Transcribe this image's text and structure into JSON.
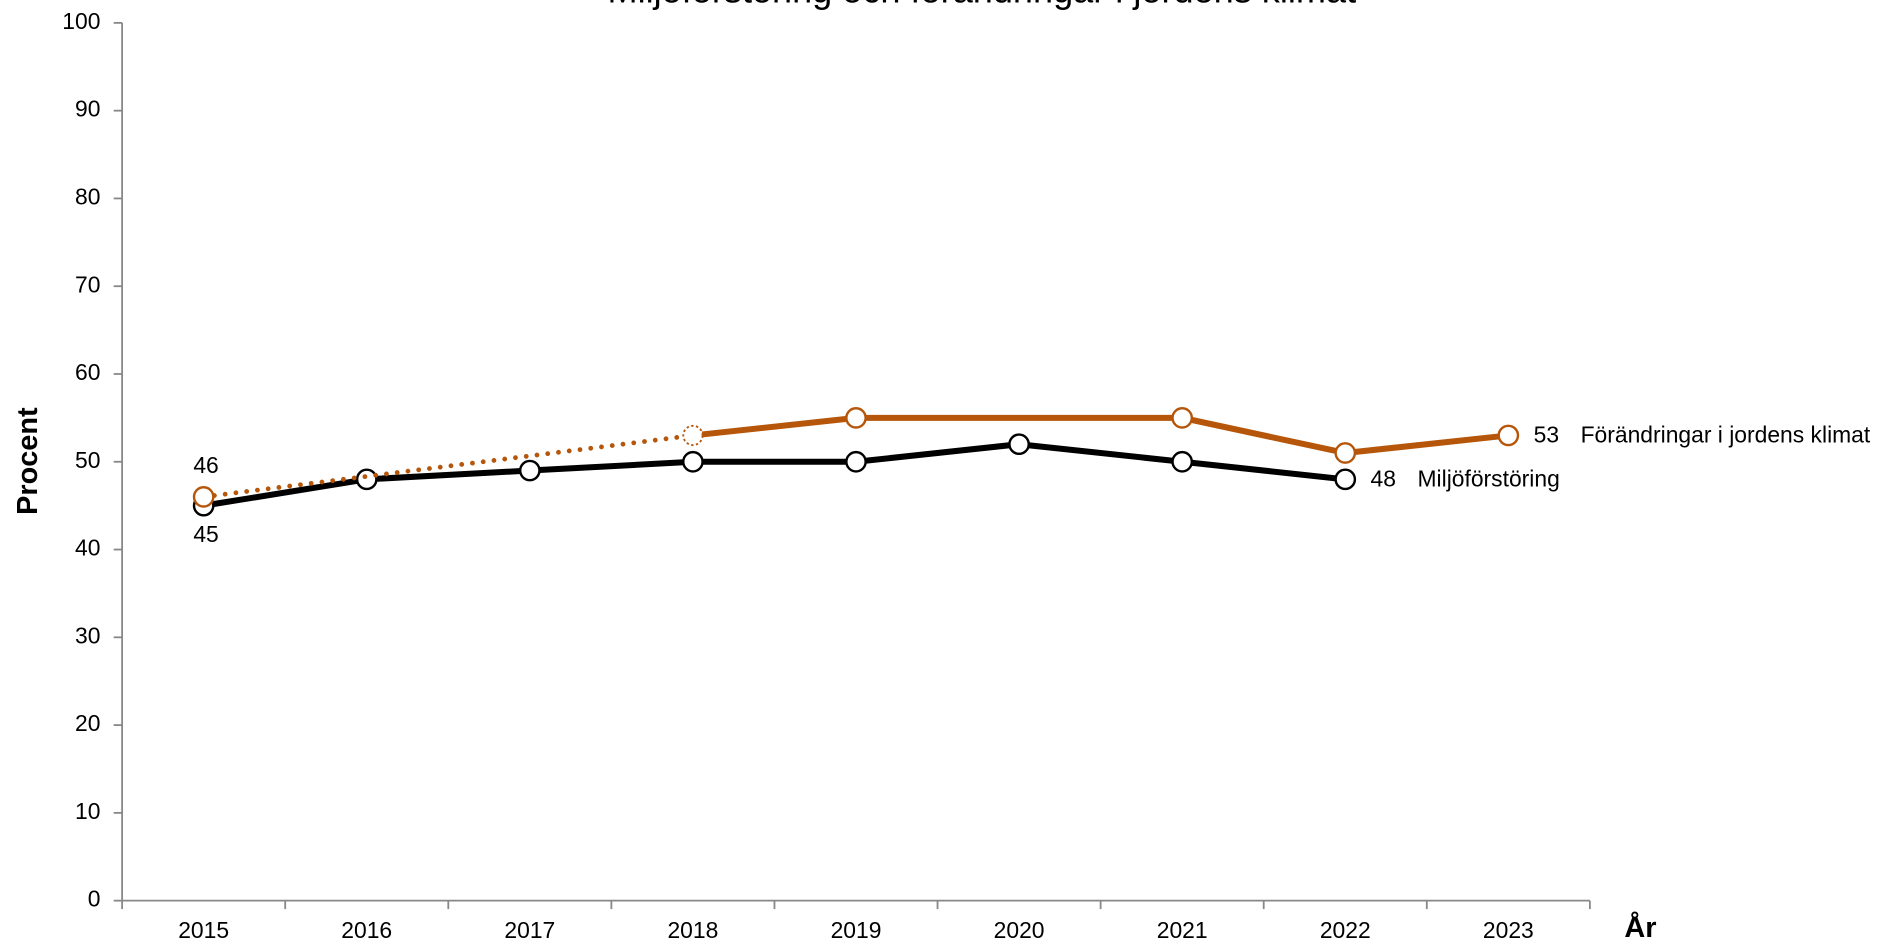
{
  "chart_data": {
    "type": "line",
    "title": "Miljöförstöring och förändringar i jordens klimat",
    "x_label": "År",
    "y_label": "Procent",
    "categories": [
      "2015",
      "2016",
      "2017",
      "2018",
      "2019",
      "2020",
      "2021",
      "2022",
      "2023"
    ],
    "ylim": [
      0,
      100
    ],
    "yticks": [
      0,
      10,
      20,
      30,
      40,
      50,
      60,
      70,
      80,
      90,
      100
    ],
    "connect_gaps": true,
    "series": [
      {
        "name": "Förändringar i jordens klimat",
        "color": "#b5560a",
        "values": [
          46,
          null,
          null,
          53,
          55,
          null,
          55,
          51,
          53
        ],
        "dotted_until": "2018",
        "label_position": "above"
      },
      {
        "name": "Miljöförstöring",
        "color": "#000000",
        "values": [
          45,
          48,
          49,
          50,
          50,
          52,
          50,
          48,
          null
        ],
        "label_position": "below"
      }
    ]
  }
}
